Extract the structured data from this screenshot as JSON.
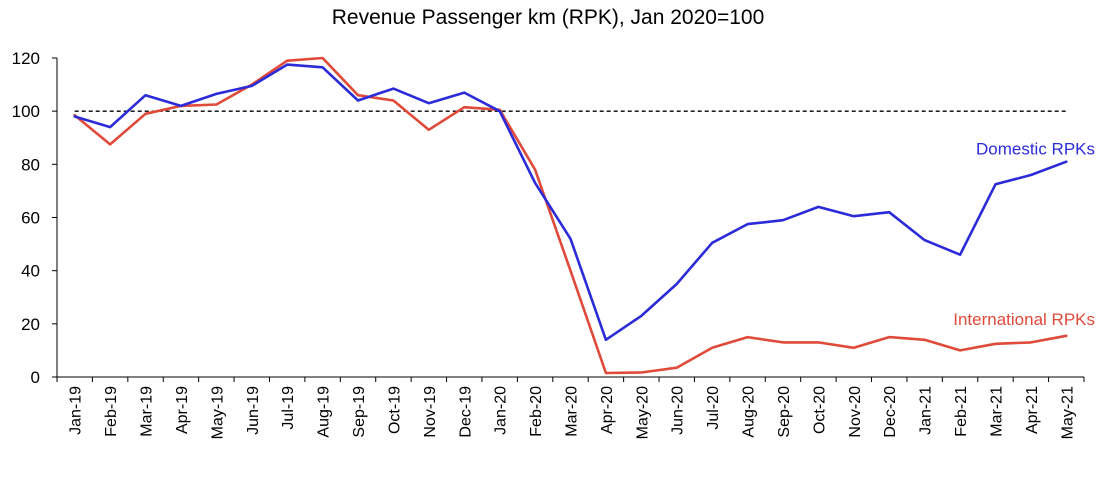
{
  "chart_data": {
    "type": "line",
    "title": "Revenue Passenger km (RPK), Jan 2020=100",
    "xlabel": "",
    "ylabel": "",
    "ylim": [
      0,
      120
    ],
    "yticks": [
      0,
      20,
      40,
      60,
      80,
      100,
      120
    ],
    "grid": false,
    "reference_line": {
      "y": 100,
      "style": "dashed",
      "color": "#000000"
    },
    "categories": [
      "Jan-19",
      "Feb-19",
      "Mar-19",
      "Apr-19",
      "May-19",
      "Jun-19",
      "Jul-19",
      "Aug-19",
      "Sep-19",
      "Oct-19",
      "Nov-19",
      "Dec-19",
      "Jan-20",
      "Feb-20",
      "Mar-20",
      "Apr-20",
      "May-20",
      "Jun-20",
      "Jul-20",
      "Aug-20",
      "Sep-20",
      "Oct-20",
      "Nov-20",
      "Dec-20",
      "Jan-21",
      "Feb-21",
      "Mar-21",
      "Apr-21",
      "May-21"
    ],
    "series": [
      {
        "name": "Domestic RPKs",
        "color": "#2b2bd9",
        "values": [
          98,
          94,
          106,
          102,
          106.5,
          109.5,
          117.5,
          116.5,
          104,
          108.5,
          103,
          107,
          100,
          73,
          52,
          14,
          23,
          35,
          50.5,
          57.5,
          59,
          64,
          60.5,
          62,
          51.5,
          46,
          72.5,
          76,
          81
        ]
      },
      {
        "name": "International RPKs",
        "color": "#e04a3a",
        "values": [
          98.5,
          87.5,
          99,
          102,
          102.5,
          110,
          119,
          120,
          106,
          104,
          93,
          101.5,
          100.5,
          78,
          40,
          1.5,
          1.7,
          3.5,
          11,
          15,
          13,
          13,
          11,
          15,
          14,
          10,
          12.5,
          13,
          15.5
        ]
      }
    ]
  }
}
